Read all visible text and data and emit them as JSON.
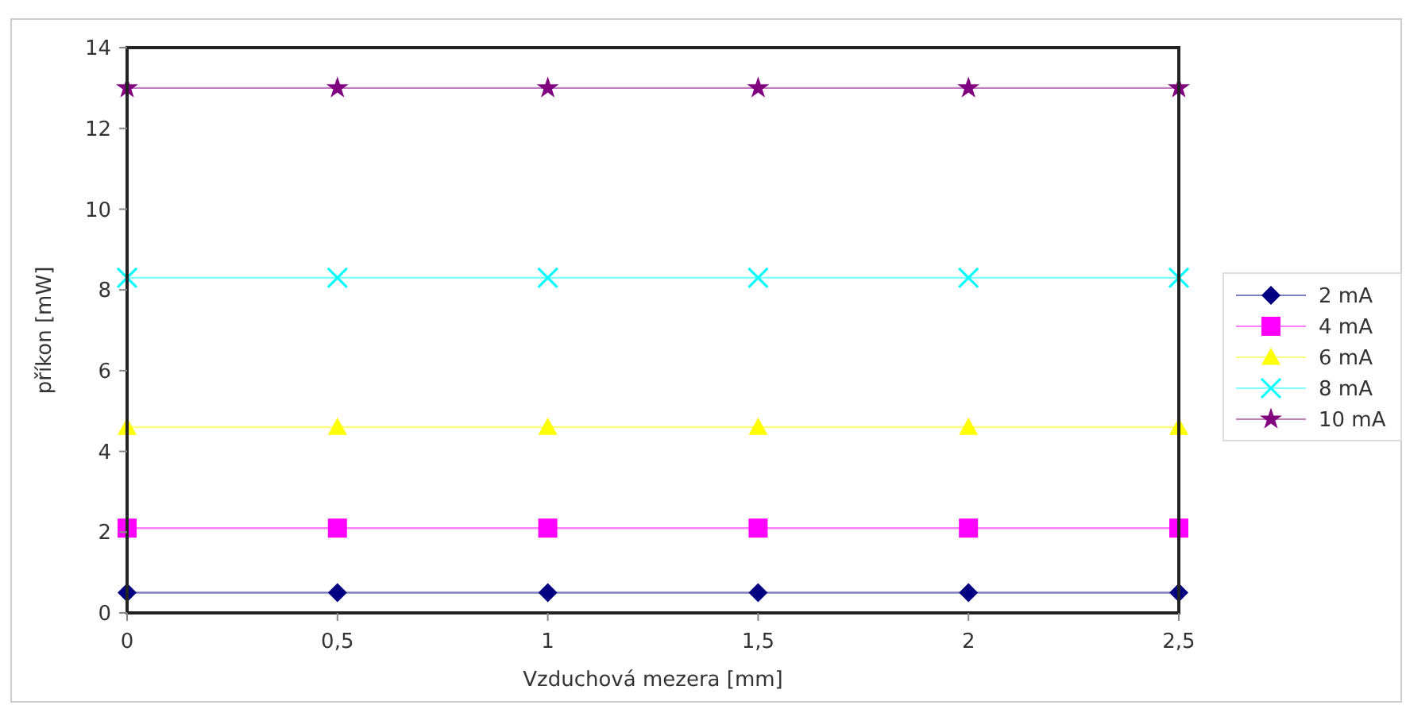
{
  "chart_data": {
    "type": "line",
    "xlabel": "Vzduchová mezera [mm]",
    "ylabel": "příkon [mW]",
    "x": [
      0,
      0.5,
      1,
      1.5,
      2,
      2.5
    ],
    "xlim": [
      0,
      2.5
    ],
    "xticks": [
      0,
      {
        "value": 0.5,
        "label": "0,5"
      },
      1,
      {
        "value": 1.5,
        "label": "1,5"
      },
      2,
      {
        "value": 2.5,
        "label": "2,5"
      }
    ],
    "ylim": [
      0,
      14
    ],
    "yticks": [
      0,
      2,
      4,
      6,
      8,
      10,
      12,
      14
    ],
    "grid": false,
    "legend": "right",
    "line_style": "solid",
    "series": [
      {
        "name": "2 mA",
        "color": "#000080",
        "marker": "diamond",
        "values": [
          0.5,
          0.5,
          0.5,
          0.5,
          0.5,
          0.5
        ]
      },
      {
        "name": "4 mA",
        "color": "#ff00ff",
        "marker": "square",
        "values": [
          2.1,
          2.1,
          2.1,
          2.1,
          2.1,
          2.1
        ]
      },
      {
        "name": "6 mA",
        "color": "#ffff00",
        "marker": "triangle",
        "values": [
          4.6,
          4.6,
          4.6,
          4.6,
          4.6,
          4.6
        ]
      },
      {
        "name": "8 mA",
        "color": "#00ffff",
        "marker": "cross",
        "values": [
          8.3,
          8.3,
          8.3,
          8.3,
          8.3,
          8.3
        ]
      },
      {
        "name": "10 mA",
        "color": "#800080",
        "marker": "star",
        "values": [
          13,
          13,
          13,
          13,
          13,
          13
        ]
      }
    ]
  }
}
